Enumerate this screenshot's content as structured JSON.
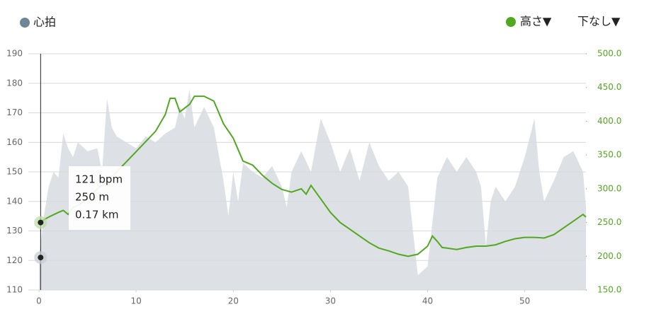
{
  "chart_data": {
    "type": "area-line",
    "xlim": [
      0,
      56.3
    ],
    "xticks": [
      0,
      10,
      20,
      30,
      40,
      50
    ],
    "ylim": [
      110,
      190
    ],
    "yticks": [
      110,
      120,
      130,
      140,
      150,
      160,
      170,
      180,
      190
    ],
    "y2lim": [
      150,
      500
    ],
    "y2ticks": [
      {
        "value": 150,
        "label": "150.0"
      },
      {
        "value": 200,
        "label": "200.0"
      },
      {
        "value": 250,
        "label": "250.0"
      },
      {
        "value": 300,
        "label": "300.0"
      },
      {
        "value": 350,
        "label": "350.0"
      },
      {
        "value": 400,
        "label": "400.0"
      },
      {
        "value": 450,
        "label": "450.0"
      },
      {
        "value": 500,
        "label": "500.0"
      }
    ],
    "grid": true,
    "series": [
      {
        "name": "心拍",
        "color": "#dde0e4",
        "legend_color": "#6e8796",
        "kind": "area",
        "x": [
          0,
          0.5,
          1,
          1.5,
          2,
          2.5,
          3,
          3.5,
          4,
          5,
          6,
          6.5,
          7,
          7.5,
          8,
          9,
          10,
          11,
          12,
          13,
          14,
          14.5,
          15,
          15.5,
          16,
          17,
          18,
          19,
          19.5,
          20,
          20.5,
          21,
          22,
          23,
          24,
          25,
          25.5,
          26,
          27,
          28,
          29,
          30,
          31,
          32,
          33,
          34,
          35,
          36,
          37,
          38,
          38.5,
          39,
          40,
          41,
          42,
          43,
          44,
          45,
          45.5,
          46,
          46.5,
          47,
          48,
          49,
          50,
          51,
          51.5,
          52,
          53,
          54,
          55,
          56,
          56.3
        ],
        "values": [
          121,
          135,
          145,
          150,
          148,
          163,
          158,
          155,
          160,
          157,
          158,
          150,
          175,
          165,
          162,
          160,
          158,
          162,
          160,
          163,
          165,
          172,
          168,
          178,
          165,
          172,
          165,
          147,
          135,
          150,
          140,
          153,
          150,
          148,
          152,
          145,
          138,
          150,
          157,
          150,
          168,
          160,
          150,
          158,
          147,
          160,
          152,
          147,
          150,
          145,
          130,
          115,
          118,
          148,
          155,
          150,
          155,
          150,
          145,
          125,
          140,
          145,
          140,
          145,
          155,
          168,
          150,
          140,
          147,
          155,
          157,
          150,
          138
        ]
      },
      {
        "name": "高さ▼",
        "color": "#52a820",
        "kind": "line",
        "axis": "y2",
        "x": [
          0,
          1,
          2,
          2.5,
          3,
          3.5,
          4,
          5,
          6,
          7,
          8,
          9,
          10,
          11,
          12,
          13,
          13.5,
          14,
          14.5,
          15.5,
          16,
          17,
          18,
          19,
          20,
          21,
          22,
          23,
          24,
          25,
          26,
          27,
          27.5,
          28,
          29,
          30,
          31,
          32,
          33,
          34,
          35,
          36,
          37,
          38,
          39,
          40,
          40.5,
          41,
          41.5,
          42,
          43,
          44,
          45,
          46,
          47,
          48,
          49,
          50,
          51,
          52,
          53,
          54,
          55,
          56,
          56.3
        ],
        "values": [
          250,
          258,
          265,
          268,
          262,
          272,
          275,
          285,
          300,
          310,
          325,
          340,
          355,
          370,
          385,
          410,
          434,
          434,
          414,
          425,
          437,
          437,
          430,
          396,
          375,
          341,
          335,
          320,
          308,
          299,
          295,
          300,
          292,
          305,
          285,
          265,
          250,
          240,
          230,
          220,
          212,
          208,
          203,
          200,
          203,
          215,
          230,
          222,
          213,
          212,
          210,
          213,
          215,
          215,
          217,
          222,
          226,
          228,
          228,
          227,
          232,
          242,
          252,
          262,
          258
        ]
      }
    ],
    "dropdown": "下なし▼",
    "tooltip": {
      "x": 0.17,
      "heart_rate": 121,
      "elevation": 250,
      "lines": [
        "121 bpm",
        "250 m",
        "0.17 km"
      ]
    }
  }
}
